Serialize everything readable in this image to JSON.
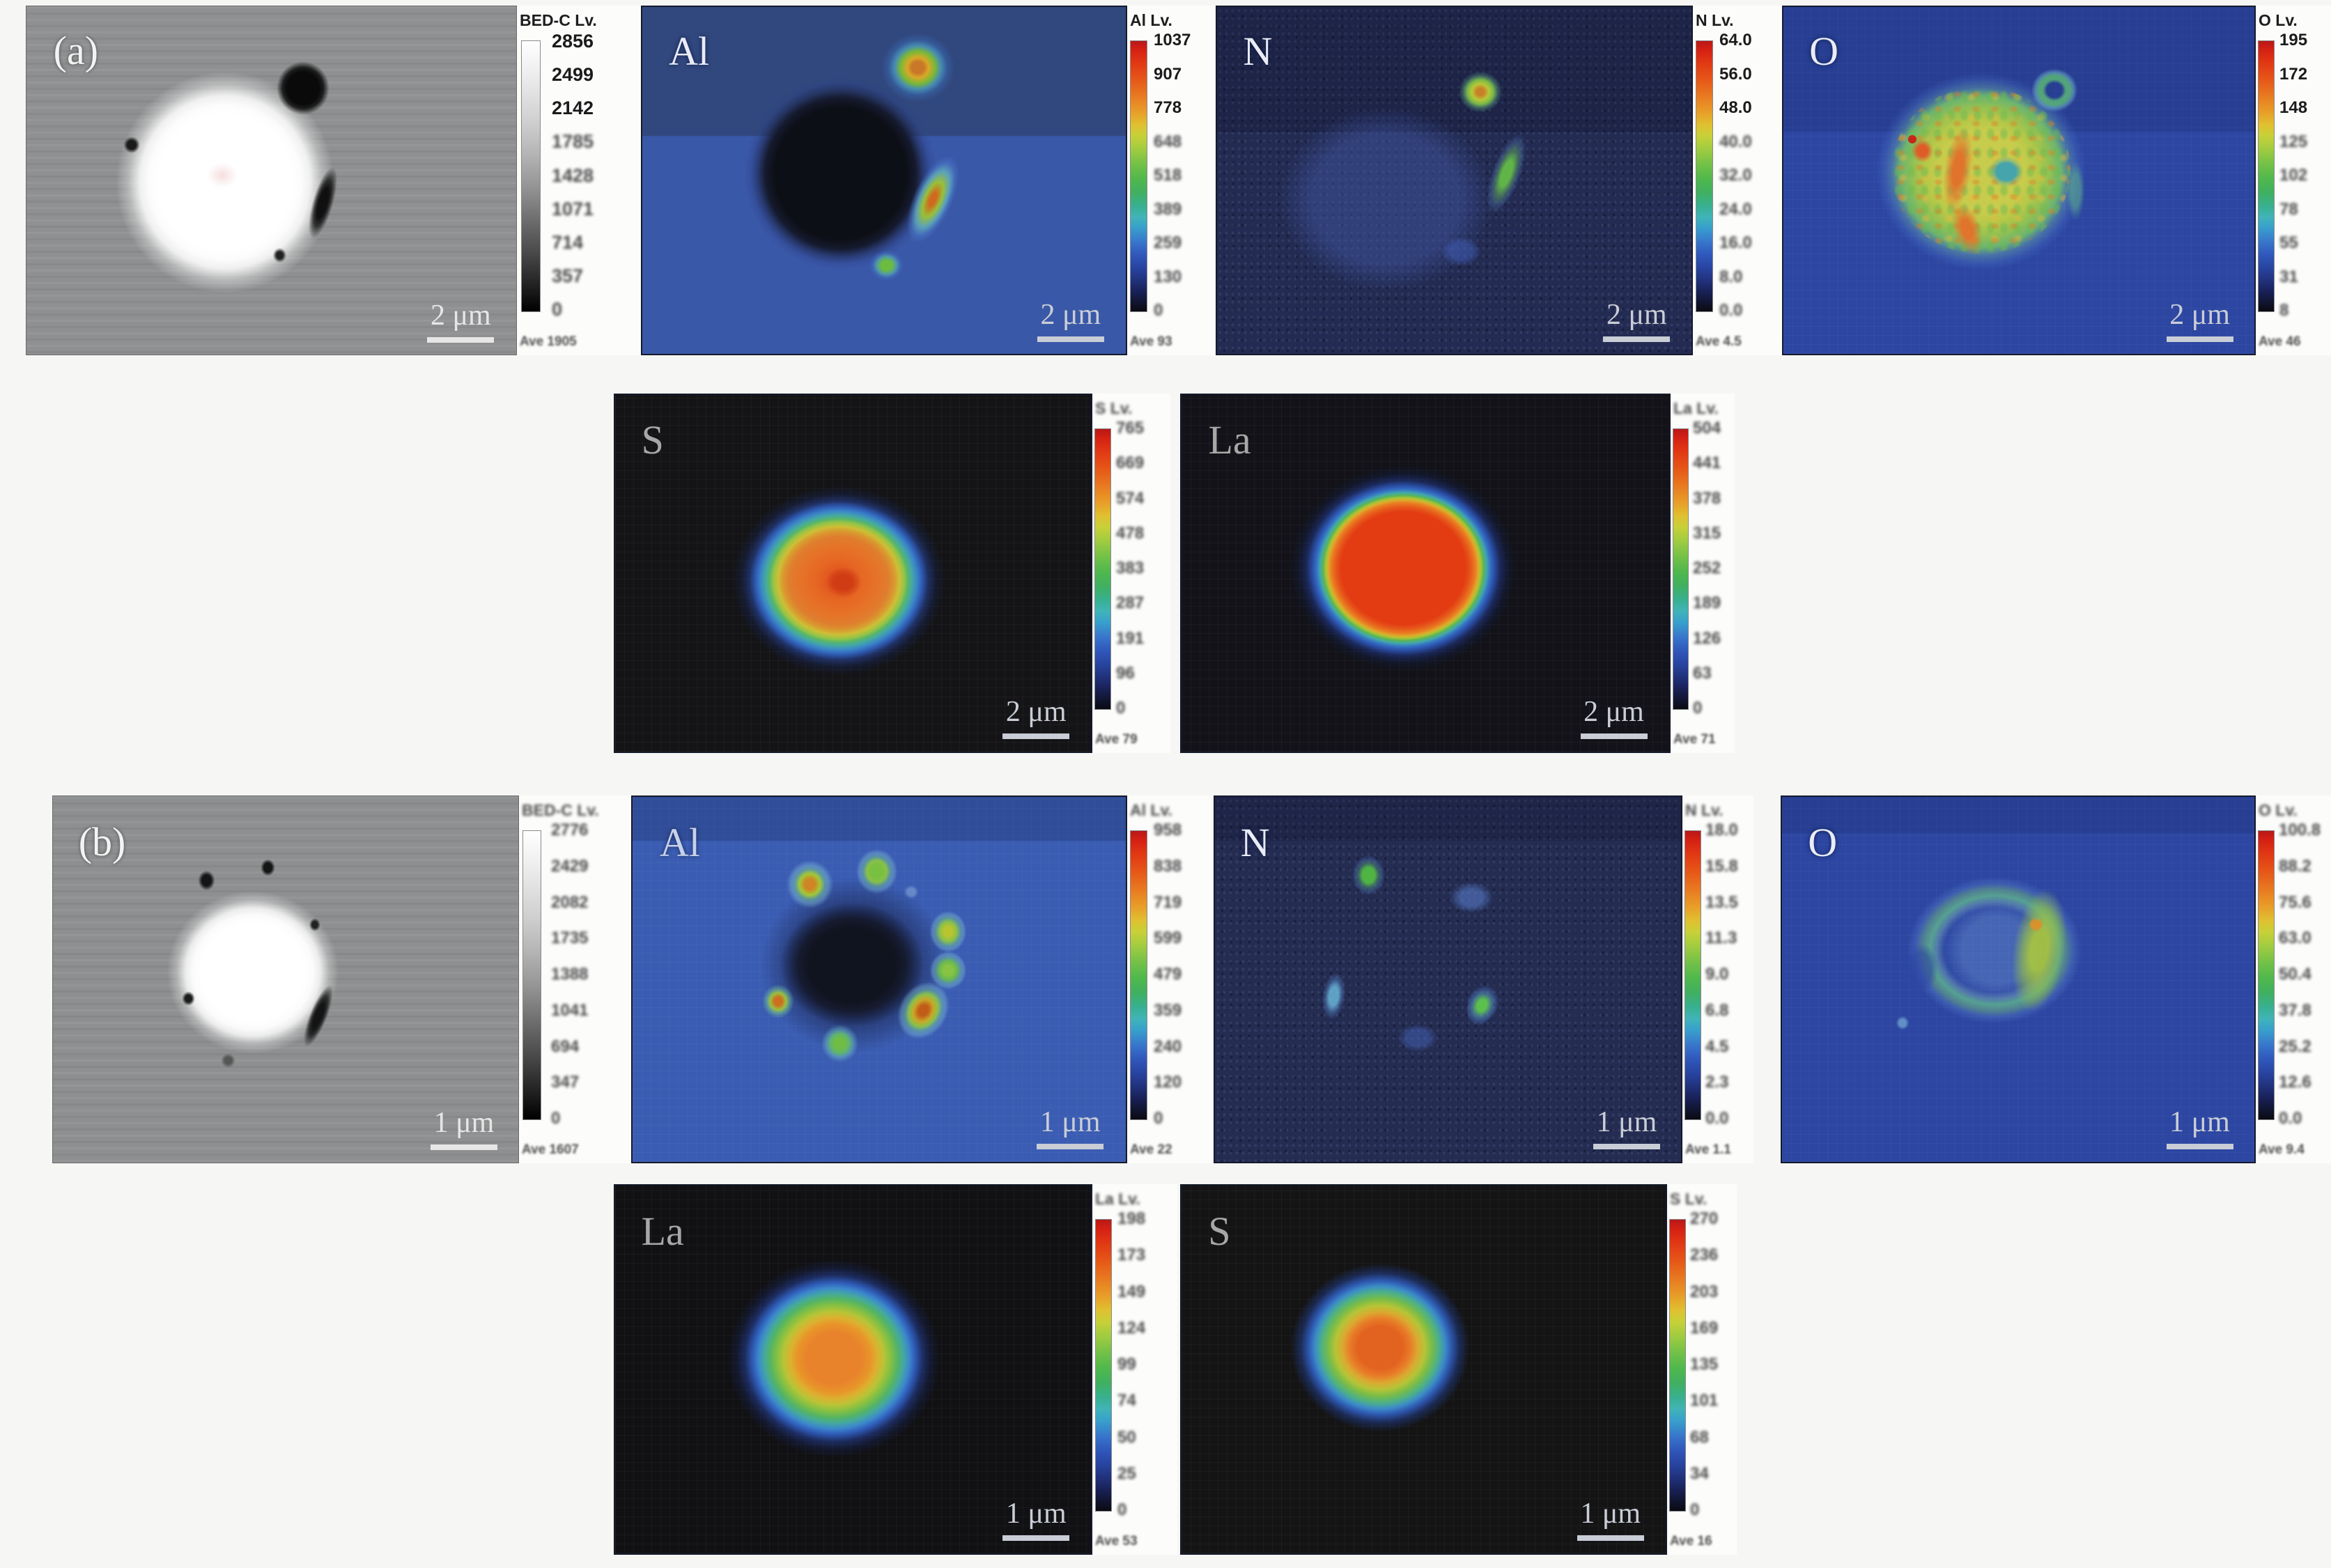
{
  "figure": {
    "description_labels": {
      "group_a": "(a)",
      "group_b": "(b)"
    },
    "panels": [
      {
        "id": "bedc-a",
        "label": "(a)",
        "scale_bar": "2 μm",
        "colorbar": {
          "title": "BED-C Lv.",
          "ticks": [
            "2856",
            "2499",
            "2142",
            "1785",
            "1428",
            "1071",
            "714",
            "357",
            "0"
          ],
          "ave": "Ave 1905",
          "legible_count": 3,
          "type": "grayscale"
        }
      },
      {
        "id": "al-a",
        "label": "Al",
        "scale_bar": "2 μm",
        "colorbar": {
          "title": "Al Lv.",
          "ticks": [
            "1037",
            "907",
            "778",
            "648",
            "518",
            "389",
            "259",
            "130",
            "0"
          ],
          "ave": "Ave 93",
          "legible_count": 3,
          "type": "rainbow"
        }
      },
      {
        "id": "n-a",
        "label": "N",
        "scale_bar": "2 μm",
        "colorbar": {
          "title": "N Lv.",
          "ticks": [
            "64.0",
            "56.0",
            "48.0",
            "40.0",
            "32.0",
            "24.0",
            "16.0",
            "8.0",
            "0.0"
          ],
          "ave": "Ave 4.5",
          "legible_count": 3,
          "type": "rainbow"
        }
      },
      {
        "id": "o-a",
        "label": "O",
        "scale_bar": "2 μm",
        "colorbar": {
          "title": "O Lv.",
          "ticks": [
            "195",
            "172",
            "148",
            "125",
            "102",
            "78",
            "55",
            "31",
            "8"
          ],
          "ave": "Ave 46",
          "legible_count": 3,
          "type": "rainbow"
        }
      },
      {
        "id": "s-a",
        "label": "S",
        "scale_bar": "2 μm",
        "colorbar": {
          "title": "S Lv.",
          "ticks": [
            "765",
            "669",
            "574",
            "478",
            "383",
            "287",
            "191",
            "96",
            "0"
          ],
          "ave": "Ave 79",
          "legible_count": 0,
          "type": "rainbow"
        }
      },
      {
        "id": "la-a",
        "label": "La",
        "scale_bar": "2 μm",
        "colorbar": {
          "title": "La Lv.",
          "ticks": [
            "504",
            "441",
            "378",
            "315",
            "252",
            "189",
            "126",
            "63",
            "0"
          ],
          "ave": "Ave 71",
          "legible_count": 0,
          "type": "rainbow"
        }
      },
      {
        "id": "bedc-b",
        "label": "(b)",
        "scale_bar": "1 μm",
        "colorbar": {
          "title": "BED-C Lv.",
          "ticks": [
            "2776",
            "2429",
            "2082",
            "1735",
            "1388",
            "1041",
            "694",
            "347",
            "0"
          ],
          "ave": "Ave 1607",
          "legible_count": 0,
          "type": "grayscale"
        }
      },
      {
        "id": "al-b",
        "label": "Al",
        "scale_bar": "1 μm",
        "colorbar": {
          "title": "Al Lv.",
          "ticks": [
            "958",
            "838",
            "719",
            "599",
            "479",
            "359",
            "240",
            "120",
            "0"
          ],
          "ave": "Ave 22",
          "legible_count": 0,
          "type": "rainbow"
        }
      },
      {
        "id": "n-b",
        "label": "N",
        "scale_bar": "1 μm",
        "colorbar": {
          "title": "N Lv.",
          "ticks": [
            "18.0",
            "15.8",
            "13.5",
            "11.3",
            "9.0",
            "6.8",
            "4.5",
            "2.3",
            "0.0"
          ],
          "ave": "Ave 1.1",
          "legible_count": 0,
          "type": "rainbow"
        }
      },
      {
        "id": "o-b",
        "label": "O",
        "scale_bar": "1 μm",
        "colorbar": {
          "title": "O Lv.",
          "ticks": [
            "100.8",
            "88.2",
            "75.6",
            "63.0",
            "50.4",
            "37.8",
            "25.2",
            "12.6",
            "0.0"
          ],
          "ave": "Ave 9.4",
          "legible_count": 0,
          "type": "rainbow"
        }
      },
      {
        "id": "la-b",
        "label": "La",
        "scale_bar": "1 μm",
        "colorbar": {
          "title": "La Lv.",
          "ticks": [
            "198",
            "173",
            "149",
            "124",
            "99",
            "74",
            "50",
            "25",
            "0"
          ],
          "ave": "Ave 53",
          "legible_count": 0,
          "type": "rainbow"
        }
      },
      {
        "id": "s-b",
        "label": "S",
        "scale_bar": "1 μm",
        "colorbar": {
          "title": "S Lv.",
          "ticks": [
            "270",
            "236",
            "203",
            "169",
            "135",
            "101",
            "68",
            "34",
            "0"
          ],
          "ave": "Ave 16",
          "legible_count": 0,
          "type": "rainbow"
        }
      }
    ]
  }
}
